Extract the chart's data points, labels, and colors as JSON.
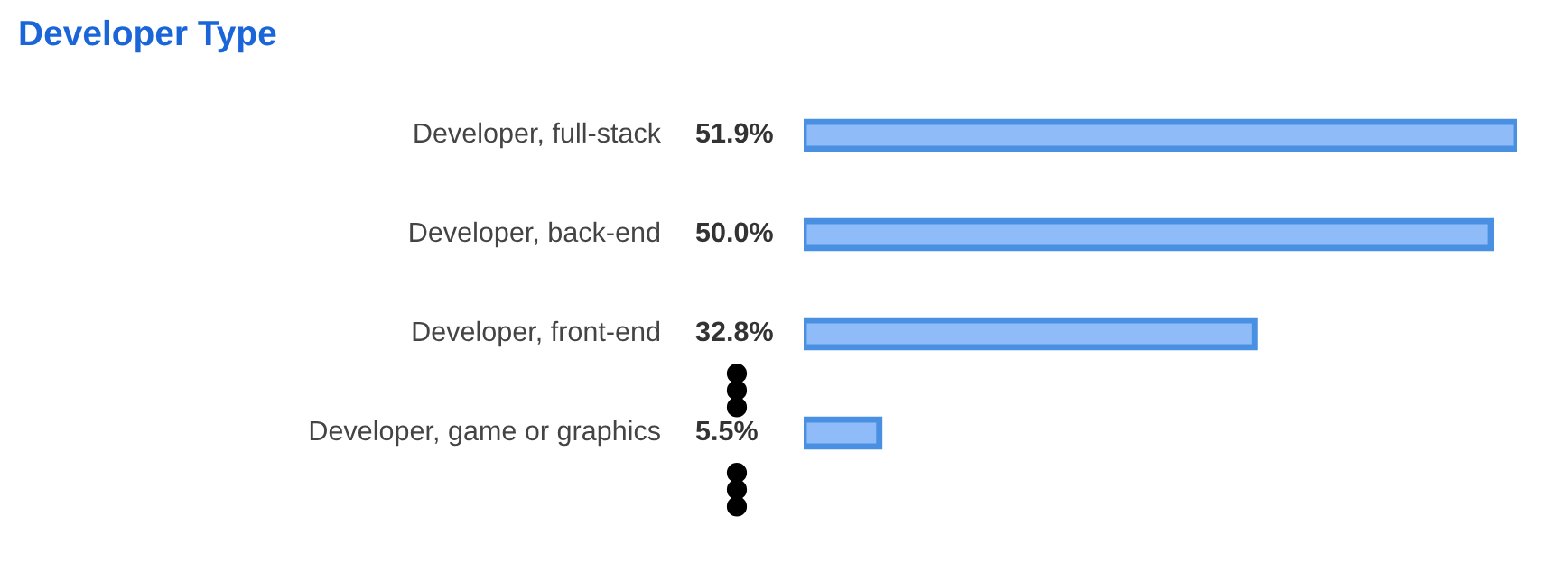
{
  "chart_data": {
    "type": "bar",
    "orientation": "horizontal",
    "title": "Developer Type",
    "categories": [
      "Developer, full-stack",
      "Developer, back-end",
      "Developer, front-end",
      "Developer, game or graphics"
    ],
    "values": [
      51.9,
      50.0,
      32.8,
      5.5
    ],
    "value_labels": [
      "51.9%",
      "50.0%",
      "32.8%",
      "5.5%"
    ],
    "color": "#8fbcf8"
  }
}
